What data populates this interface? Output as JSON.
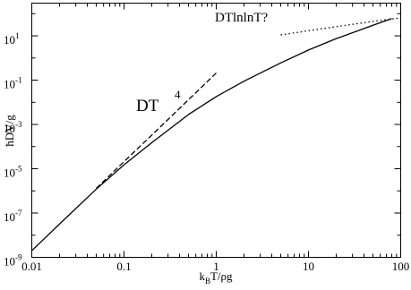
{
  "chart_data": {
    "type": "line",
    "xscale": "log",
    "yscale": "log",
    "xlim": [
      0.01,
      100
    ],
    "ylim": [
      1e-09,
      300
    ],
    "xlabel": "k_BT/ρg",
    "ylabel": "ħDV/g",
    "x_tick_labels": [
      "0.01",
      "0.1",
      "1",
      "10",
      "100"
    ],
    "x_tick_values": [
      0.01,
      0.1,
      1,
      10,
      100
    ],
    "y_tick_labels": [
      {
        "base": "10",
        "exp": "-9",
        "value": 1e-09
      },
      {
        "base": "10",
        "exp": "-7",
        "value": 1e-07
      },
      {
        "base": "10",
        "exp": "-5",
        "value": 1e-05
      },
      {
        "base": "10",
        "exp": "-3",
        "value": 0.001
      },
      {
        "base": "10",
        "exp": "-1",
        "value": 0.1
      },
      {
        "base": "10",
        "exp": "1",
        "value": 10
      }
    ],
    "series": [
      {
        "style": "solid",
        "x": [
          0.01,
          0.02,
          0.05,
          0.1,
          0.2,
          0.5,
          1,
          2,
          5,
          10,
          20,
          50,
          80
        ],
        "y": [
          2e-09,
          3.2e-08,
          1.2e-06,
          1.5e-05,
          0.00015,
          0.0028,
          0.018,
          0.09,
          0.6,
          2.3,
          7.5,
          30,
          60
        ]
      },
      {
        "style": "dashed",
        "x": [
          0.05,
          0.1,
          0.2,
          0.5,
          1
        ],
        "y": [
          1.3e-06,
          2.1e-05,
          0.00033,
          0.013,
          0.21
        ]
      },
      {
        "style": "dotted",
        "x": [
          5,
          10,
          20,
          50,
          100
        ],
        "y": [
          11,
          17,
          26,
          45,
          65
        ]
      }
    ],
    "annotations": {
      "dt4_base": "DT",
      "dt4_exp": "4",
      "dtlnlnt": "DTlnlnT?"
    }
  }
}
